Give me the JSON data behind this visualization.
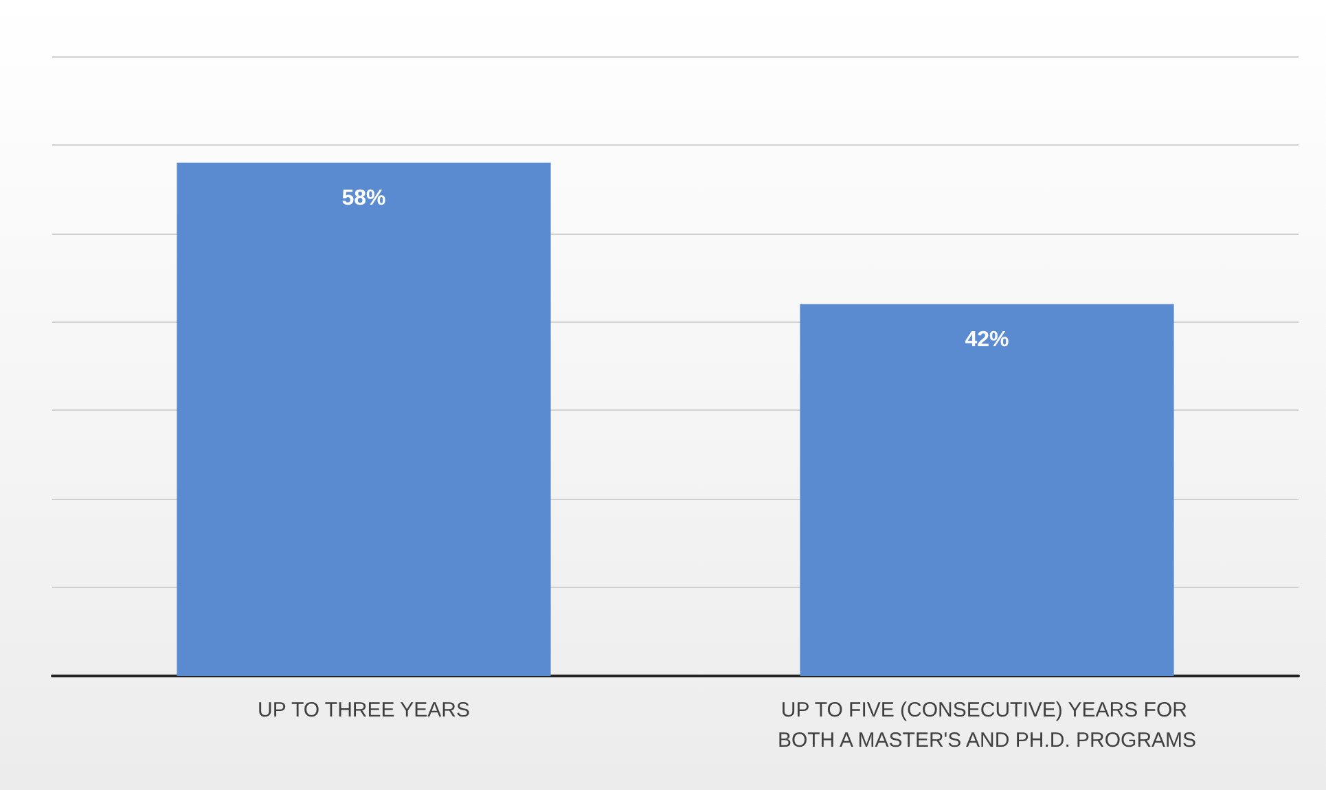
{
  "chart_data": {
    "type": "bar",
    "categories": [
      "UP TO THREE YEARS",
      "UP TO FIVE (CONSECUTIVE) YEARS FOR BOTH A MASTER'S AND PH.D. PROGRAMS"
    ],
    "values": [
      58,
      42
    ],
    "value_labels": [
      "58%",
      "42%"
    ],
    "color": "#5a8ad0",
    "ylim": [
      0,
      70
    ],
    "yticks": [
      {
        "value": 0,
        "label": null
      },
      {
        "value": 10,
        "label": null
      },
      {
        "value": 20,
        "label": null
      },
      {
        "value": 30,
        "label": null
      },
      {
        "value": 40,
        "label": null
      },
      {
        "value": 50,
        "label": null
      },
      {
        "value": 60,
        "label": null
      },
      {
        "value": 70,
        "label": null
      }
    ],
    "grid": "y",
    "tick_labels": "x"
  }
}
